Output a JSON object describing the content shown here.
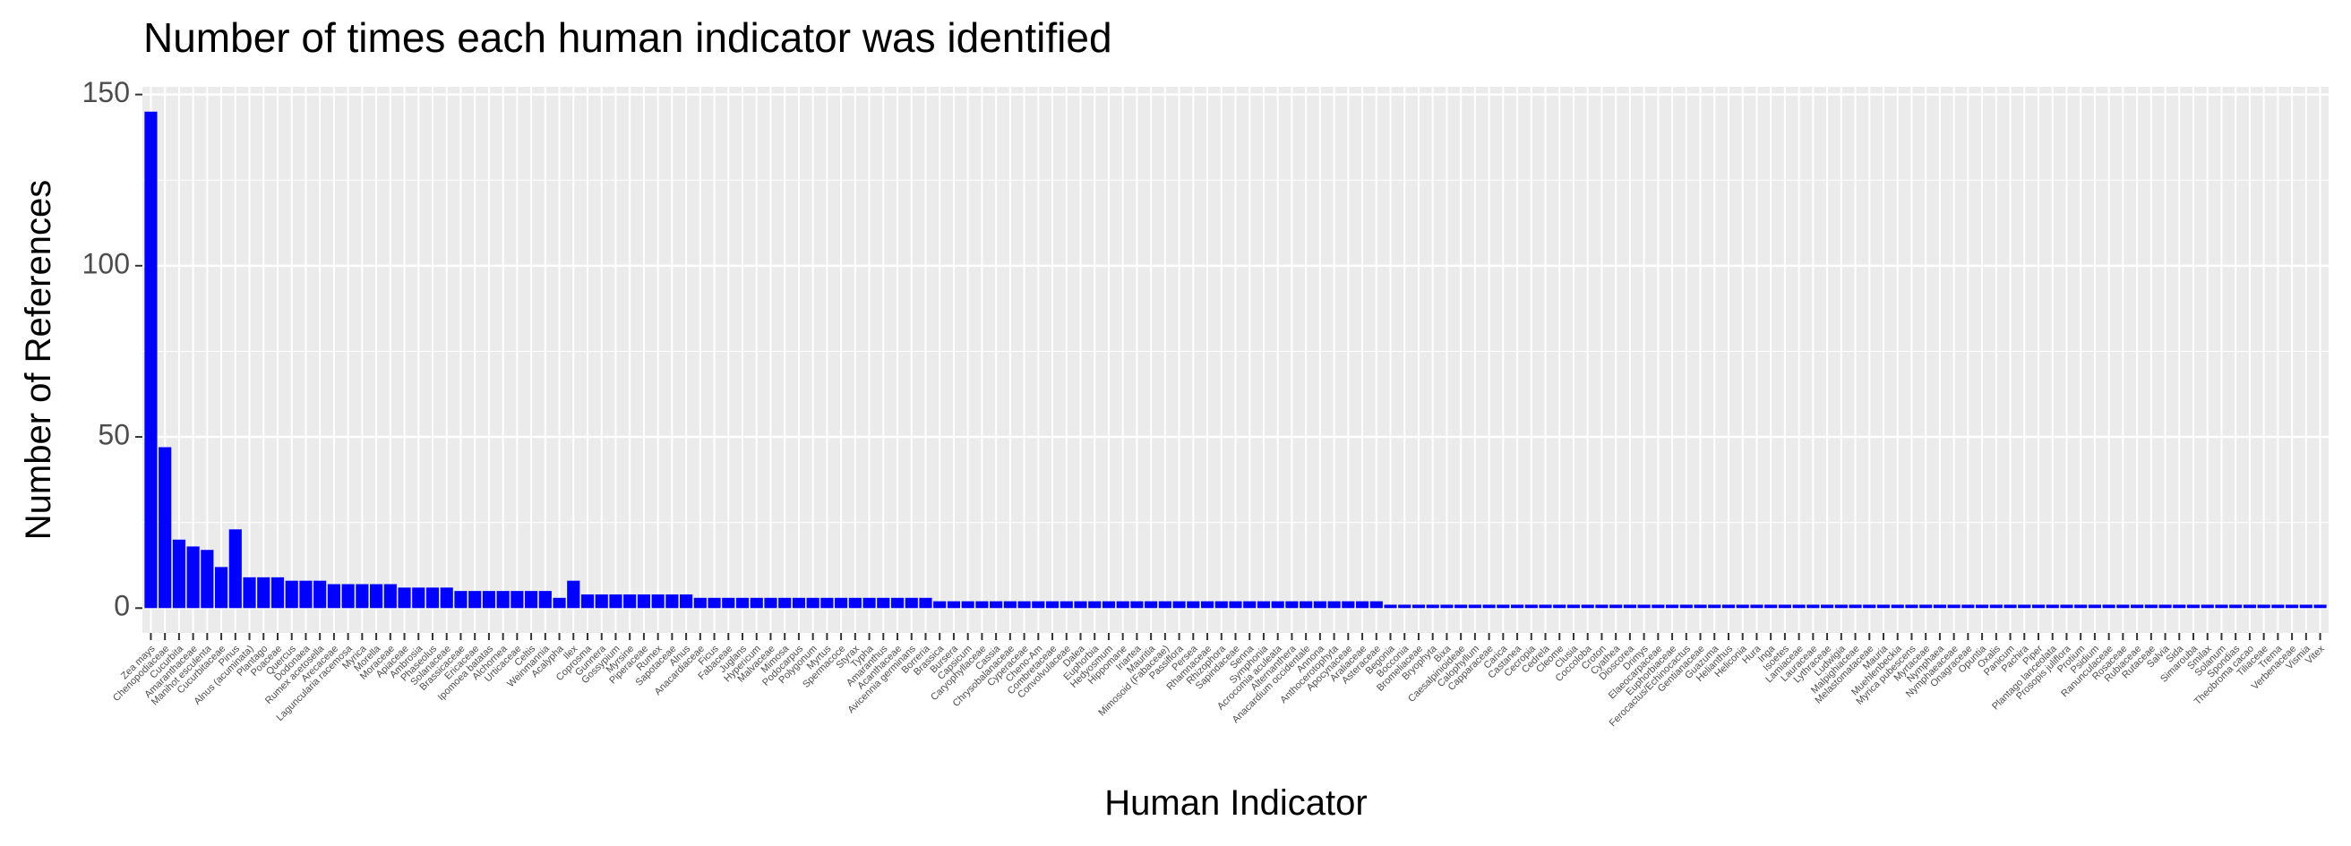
{
  "chart_data": {
    "type": "bar",
    "title": "Number of times each human indicator was identified",
    "x_label": "Human Indicator",
    "y_label": "Number of References",
    "color": "#0000ff",
    "ylim": [
      -7.25,
      152.25
    ],
    "yticks": [
      0,
      50,
      100,
      150
    ],
    "grid": true,
    "categories": [
      "Zea mays",
      "Chenopodiaceae",
      "Cucurbita",
      "Amaranthaceae",
      "Manihot esculenta",
      "Cucurbitaceae",
      "Pinus",
      "Alnus (acuminata)",
      "Plantago",
      "Poaceae",
      "Quercus",
      "Dodonaea",
      "Rumex acetosella",
      "Arecaceae",
      "Laguncularia racemosa",
      "Myrica",
      "Morella",
      "Moraceae",
      "Apiaceae",
      "Ambrosia",
      "Phaseolus",
      "Solanaceae",
      "Brassicaceae",
      "Ericaceae",
      "Ipomoea batatas",
      "Alchornea",
      "Urticaceae",
      "Celtis",
      "Weinmannia",
      "Acalypha",
      "Ilex",
      "Coprosma",
      "Gunnera",
      "Gossypium",
      "Myrsine",
      "Piperaceae",
      "Rumex",
      "Sapotaceae",
      "Alnus",
      "Anacardiaceae",
      "Ficus",
      "Fabaceae",
      "Juglans",
      "Hypericum",
      "Malvaceae",
      "Mimosa",
      "Podocarpus",
      "Polygonum",
      "Myrtus",
      "Spermacoce",
      "Styrax",
      "Typha",
      "Amaranthus",
      "Acanthaceae",
      "Avicennia germinans",
      "Borreria",
      "Brassica",
      "Bursera",
      "Capsicum",
      "Caryophyllaceae",
      "Cassia",
      "Chrysobalanaceae",
      "Cyperaceae",
      "Cheno-Am",
      "Combretaceae",
      "Convolvulaceae",
      "Dalea",
      "Euphorbia",
      "Hedyosmum",
      "Hippomane",
      "Iriartea",
      "Mauritia",
      "Mimosoid (Fabaceae)",
      "Passiflora",
      "Persea",
      "Rhamnaceae",
      "Rhizophora",
      "Sapindaceae",
      "Senna",
      "Symphonia",
      "Acrocomia aculeata",
      "Alternanthera",
      "Anacardium occidentale",
      "Annona",
      "Anthocerotophyta",
      "Apocynaceae",
      "Araliaceae",
      "Asteraceae",
      "Begonia",
      "Bocconia",
      "Bromeliaceae",
      "Bryophyta",
      "Bixa",
      "Caesalpinioideae",
      "Calophyllum",
      "Capparaceae",
      "Carica",
      "Castanea",
      "Cecropia",
      "Cedrela",
      "Cleome",
      "Clusia",
      "Coccoloba",
      "Croton",
      "Cyathea",
      "Dioscorea",
      "Drimys",
      "Elaeocarpaceae",
      "Euphorbiaceae",
      "Ferocactus/Echinocactus",
      "Gentianaceae",
      "Guazuma",
      "Helianthus",
      "Heliconia",
      "Hura",
      "Inga",
      "Isoetes",
      "Lamiaceae",
      "Lauraceae",
      "Lythraceae",
      "Ludwigia",
      "Malpighiaceae",
      "Melastomataceae",
      "Mauria",
      "Muehlenbeckia",
      "Myrica pubescens",
      "Myrtaceae",
      "Nymphaea",
      "Nymphaeaceae",
      "Onagraceae",
      "Opuntia",
      "Oxalis",
      "Panicum",
      "Pachira",
      "Piper",
      "Plantago lanceolata",
      "Prosopis juliflora",
      "Protium",
      "Psidium",
      "Ranunculaceae",
      "Rosaceae",
      "Rubiaceae",
      "Rutaceae",
      "Salvia",
      "Sida",
      "Simarouba",
      "Smilax",
      "Solanum",
      "Spondias",
      "Theobroma cacao",
      "Tiliaceae",
      "Trema",
      "Verbenaceae",
      "Vismia",
      "Vitex"
    ],
    "values": [
      145,
      47,
      20,
      18,
      17,
      12,
      23,
      9,
      9,
      9,
      8,
      8,
      8,
      7,
      7,
      7,
      7,
      7,
      6,
      6,
      6,
      6,
      5,
      5,
      5,
      5,
      5,
      5,
      5,
      3,
      8,
      4,
      4,
      4,
      4,
      4,
      4,
      4,
      4,
      3,
      3,
      3,
      3,
      3,
      3,
      3,
      3,
      3,
      3,
      3,
      3,
      3,
      3,
      3,
      3,
      3,
      2,
      2,
      2,
      2,
      2,
      2,
      2,
      2,
      2,
      2,
      2,
      2,
      2,
      2,
      2,
      2,
      2,
      2,
      2,
      2,
      2,
      2,
      2,
      2,
      2,
      2,
      2,
      2,
      2,
      2,
      2,
      2,
      1,
      1,
      1,
      1,
      1,
      1,
      1,
      1,
      1,
      1,
      1,
      1,
      1,
      1,
      1,
      1,
      1,
      1,
      1,
      1,
      1,
      1,
      1,
      1,
      1,
      1,
      1,
      1,
      1,
      1,
      1,
      1,
      1,
      1,
      1,
      1,
      1,
      1,
      1,
      1,
      1,
      1,
      1,
      1,
      1,
      1,
      1,
      1,
      1,
      1,
      1,
      1,
      1,
      1,
      1,
      1,
      1,
      1,
      1,
      1,
      1,
      1,
      1,
      1,
      1,
      1,
      1
    ]
  }
}
